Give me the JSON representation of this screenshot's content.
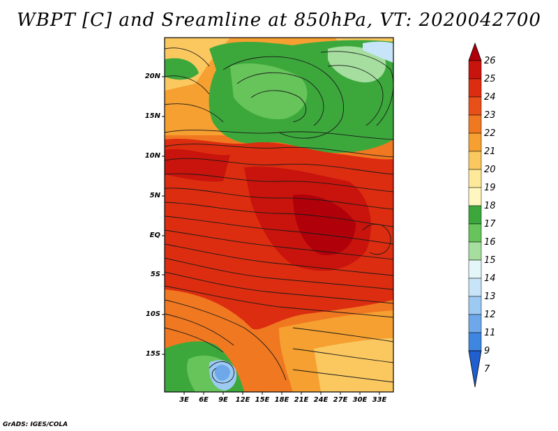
{
  "title": "WBPT [C] and Sreamline at 850hPa, VT: 2020042700",
  "footer": "GrADS: IGES/COLA",
  "map": {
    "lat_labels": [
      "20N",
      "15N",
      "10N",
      "5N",
      "EQ",
      "5S",
      "10S",
      "15S"
    ],
    "lon_labels": [
      "3E",
      "6E",
      "9E",
      "12E",
      "15E",
      "18E",
      "21E",
      "24E",
      "27E",
      "30E",
      "33E"
    ]
  },
  "colorbar": {
    "labels": [
      "26",
      "25",
      "24",
      "23",
      "22",
      "21",
      "20",
      "19",
      "18",
      "17",
      "16",
      "15",
      "14",
      "13",
      "12",
      "11",
      "9",
      "7"
    ],
    "colors": [
      "#b0000a",
      "#c8140c",
      "#dc2d10",
      "#e8501a",
      "#f07820",
      "#f5a030",
      "#fbc860",
      "#fde99a",
      "#fff6c0",
      "#3ca83c",
      "#66c45a",
      "#a6dea0",
      "#e4f6f8",
      "#c8e4f8",
      "#9ccaf2",
      "#6ea8ea",
      "#3f86e0",
      "#1f5fd0"
    ]
  }
}
